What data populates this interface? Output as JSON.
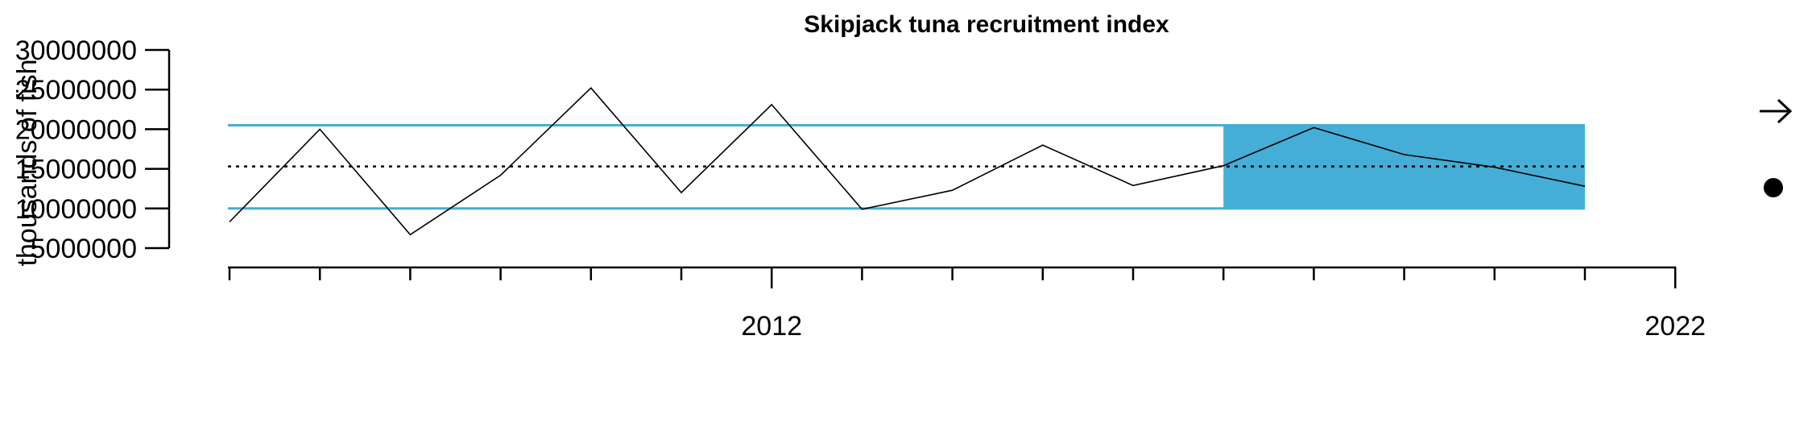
{
  "chart_data": {
    "type": "line",
    "title": "Skipjack tuna recruitment index",
    "ylabel": "thousands of fish",
    "xlabel": "",
    "x_tick_labels": [
      {
        "x": 2012,
        "label": "2012"
      },
      {
        "x": 2022,
        "label": "2022"
      }
    ],
    "y_ticks": [
      {
        "value": 5000000,
        "label": "5000000"
      },
      {
        "value": 10000000,
        "label": "10000000"
      },
      {
        "value": 15000000,
        "label": "15000000"
      },
      {
        "value": 20000000,
        "label": "20000000"
      },
      {
        "value": 25000000,
        "label": "25000000"
      },
      {
        "value": 30000000,
        "label": "30000000"
      }
    ],
    "xlim": [
      2005.8,
      2023
    ],
    "ylim": [
      5000000,
      30000000
    ],
    "x_minor_ticks": [
      2006,
      2007,
      2008,
      2009,
      2010,
      2011,
      2012,
      2013,
      2014,
      2015,
      2016,
      2017,
      2018,
      2019,
      2020,
      2021,
      2022
    ],
    "series": [
      {
        "x": [
          2006,
          2007,
          2008,
          2009,
          2010,
          2011,
          2012,
          2013,
          2014,
          2015,
          2016,
          2017,
          2018,
          2019,
          2020,
          2021
        ],
        "values": [
          8300000,
          20000000,
          6700000,
          14200000,
          25200000,
          12000000,
          23100000,
          9900000,
          12300000,
          18000000,
          12900000,
          15400000,
          20200000,
          16800000,
          15200000,
          12800000
        ]
      }
    ],
    "mean_line": 15300000,
    "upper_band": 20500000,
    "lower_band": 10000000,
    "highlight_range": [
      2017,
      2021
    ],
    "colors": {
      "line": "#000000",
      "band": "#44aed6",
      "highlight": "#44aed6"
    },
    "indicators": {
      "trend_icon": "right-arrow-icon",
      "status_icon": "filled-circle-icon"
    }
  }
}
